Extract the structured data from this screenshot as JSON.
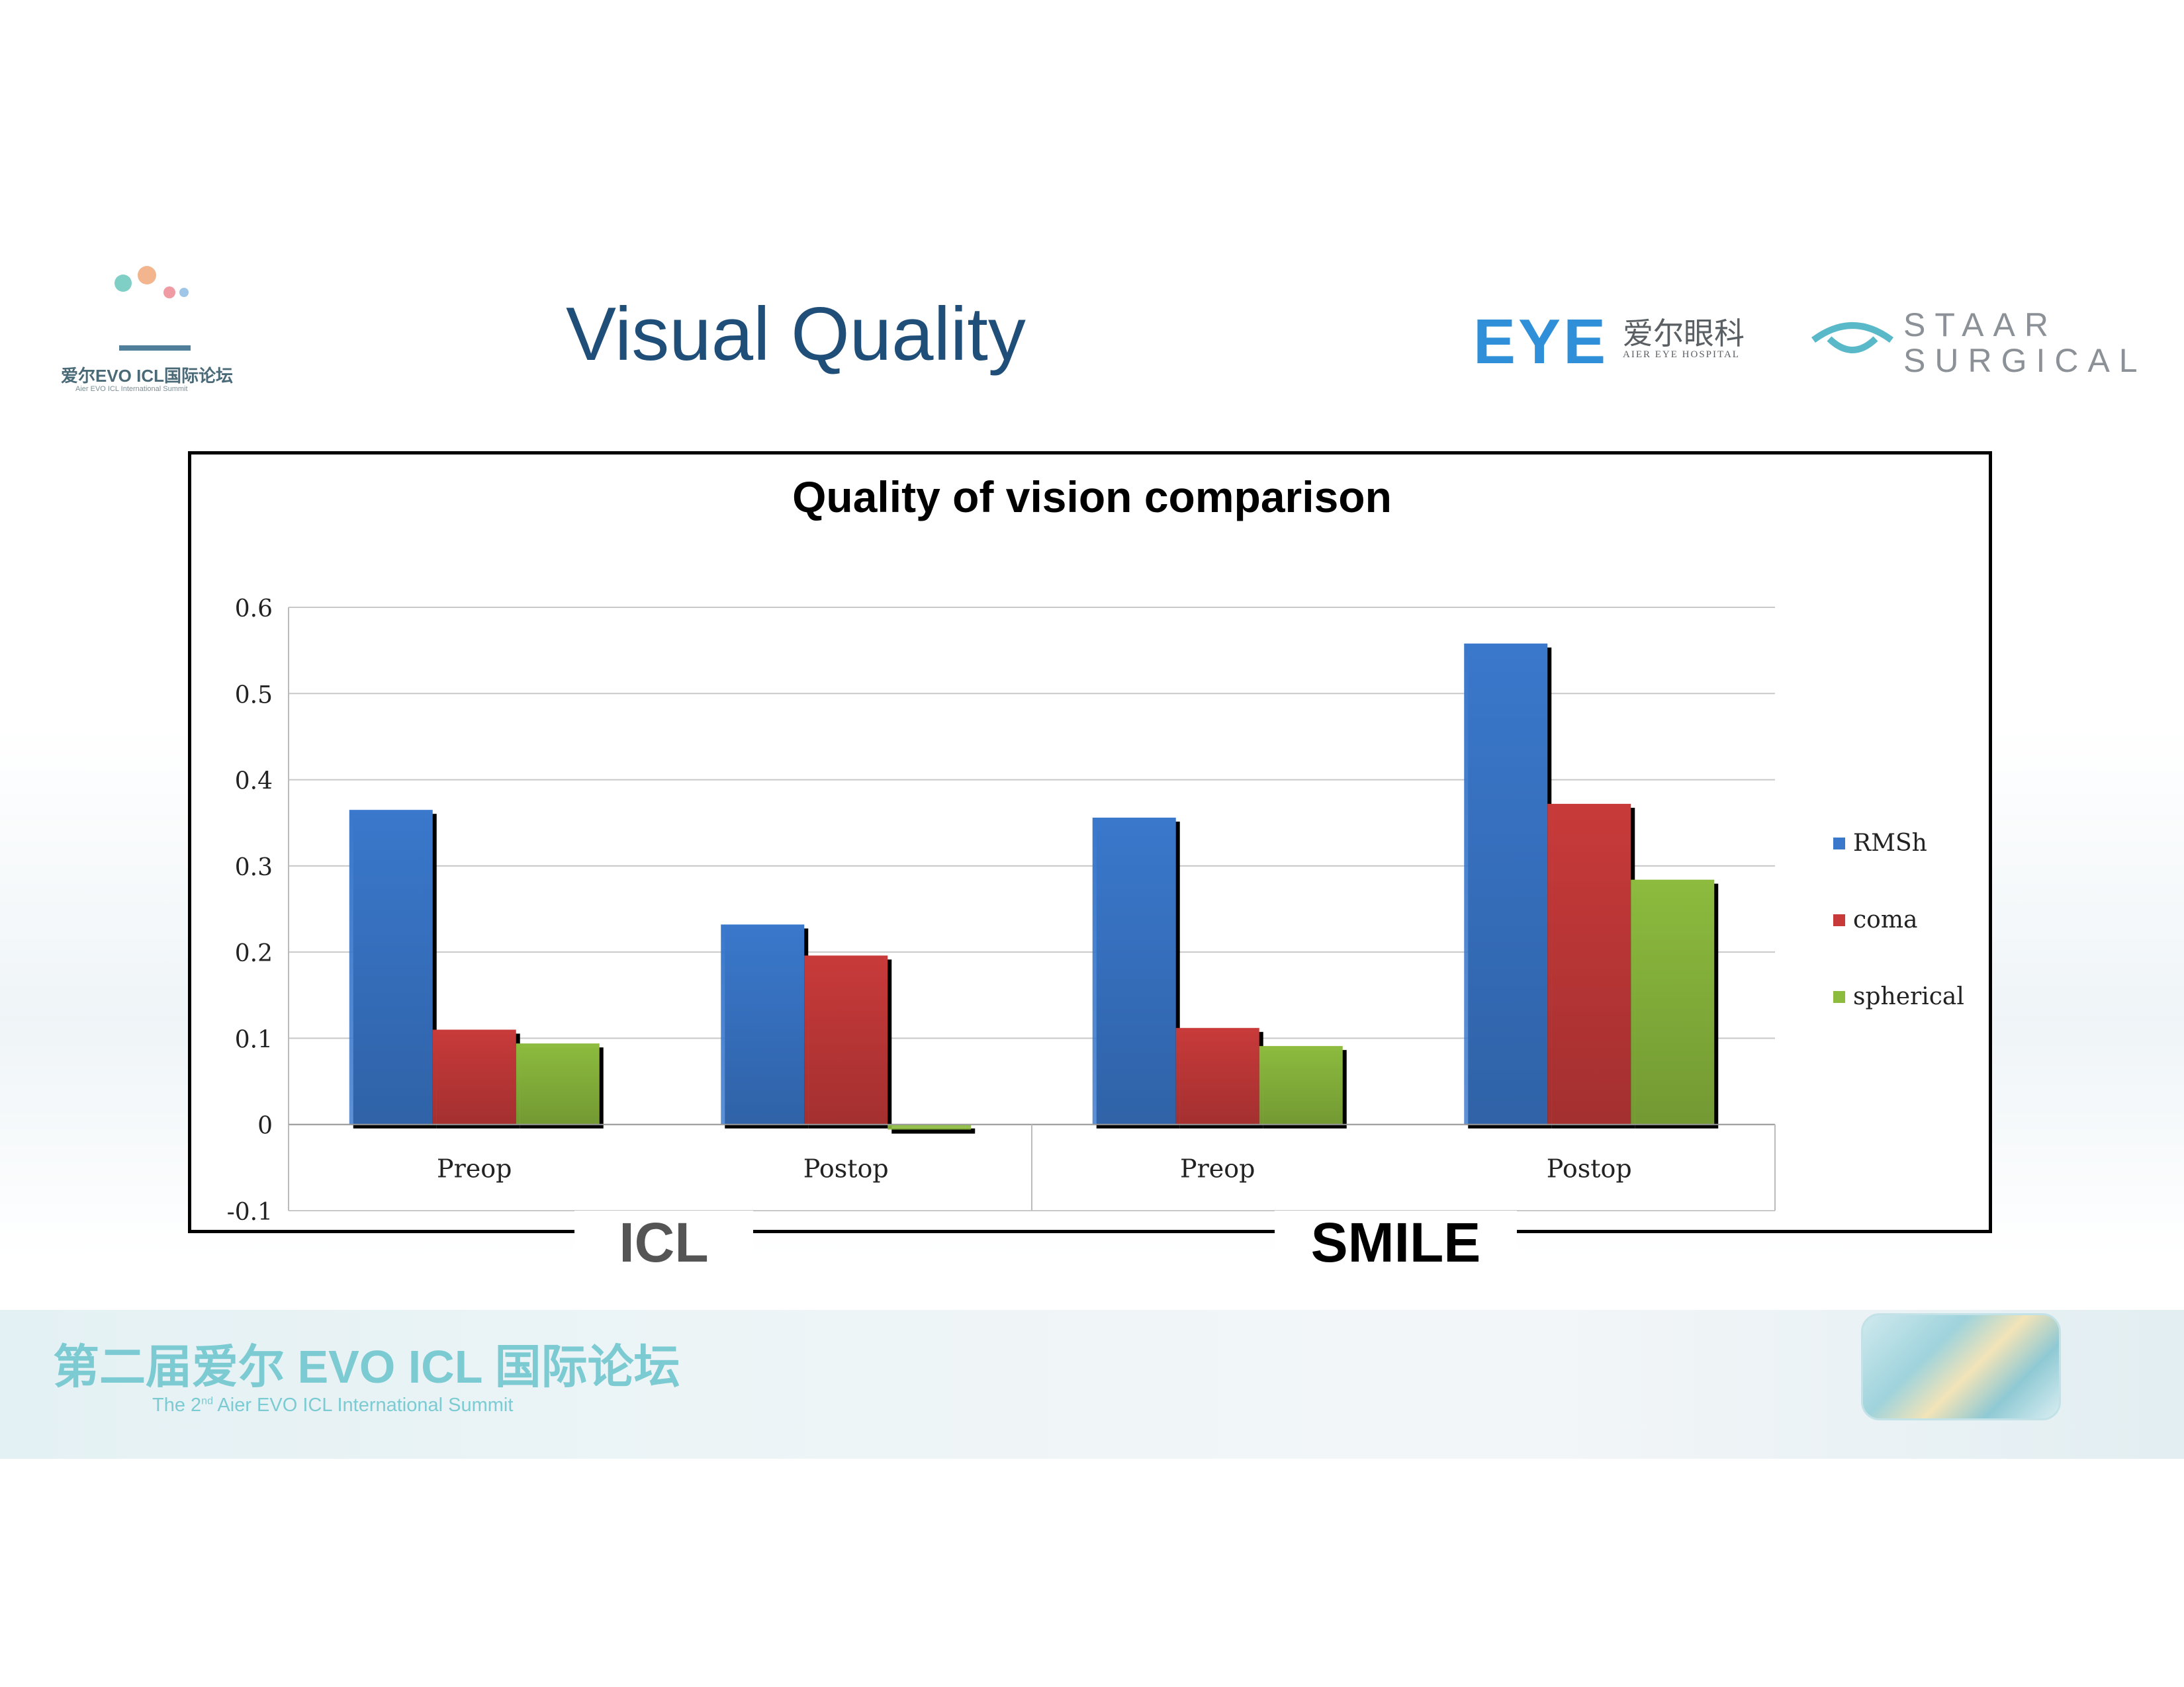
{
  "header": {
    "title": "Visual Quality",
    "summit_logo_text": "爱尔EVO ICL国际论坛",
    "summit_logo_sub": "Aier EVO ICL International Summit",
    "aier_logo_word": "EYE",
    "aier_logo_cn": "爱尔眼科",
    "aier_logo_en": "AIER EYE HOSPITAL",
    "staar_logo_line1": "STAAR",
    "staar_logo_line2": "SURGICAL"
  },
  "chart_data": {
    "type": "bar",
    "title": "Quality of vision comparison",
    "categories": [
      "Preop",
      "Postop",
      "Preop",
      "Postop"
    ],
    "groups": [
      {
        "label": "ICL",
        "categories": [
          "Preop",
          "Postop"
        ]
      },
      {
        "label": "SMILE",
        "categories": [
          "Preop",
          "Postop"
        ]
      }
    ],
    "series": [
      {
        "name": "RMSh",
        "values": [
          0.365,
          0.232,
          0.356,
          0.558
        ],
        "color": "#3a78cc"
      },
      {
        "name": "coma",
        "values": [
          0.11,
          0.196,
          0.112,
          0.372
        ],
        "color": "#c83a3a"
      },
      {
        "name": "spherical",
        "values": [
          0.094,
          -0.006,
          0.091,
          0.284
        ],
        "color": "#8cbb3e"
      }
    ],
    "ylim": [
      -0.1,
      0.6
    ],
    "yticks": [
      0.6,
      0.5,
      0.4,
      0.3,
      0.2,
      0.1,
      0,
      -0.1
    ],
    "ytick_labels": [
      "0.6",
      "0.5",
      "0.4",
      "0.3",
      "0.2",
      "0.1",
      "0",
      "-0.1"
    ],
    "xlabel": "",
    "ylabel": "",
    "grid": true,
    "legend_position": "right"
  },
  "footer": {
    "title_cn": "第二届爱尔 EVO ICL 国际论坛",
    "subtitle_prefix": "The 2",
    "subtitle_sup": "nd",
    "subtitle_rest": " Aier EVO ICL International Summit"
  }
}
